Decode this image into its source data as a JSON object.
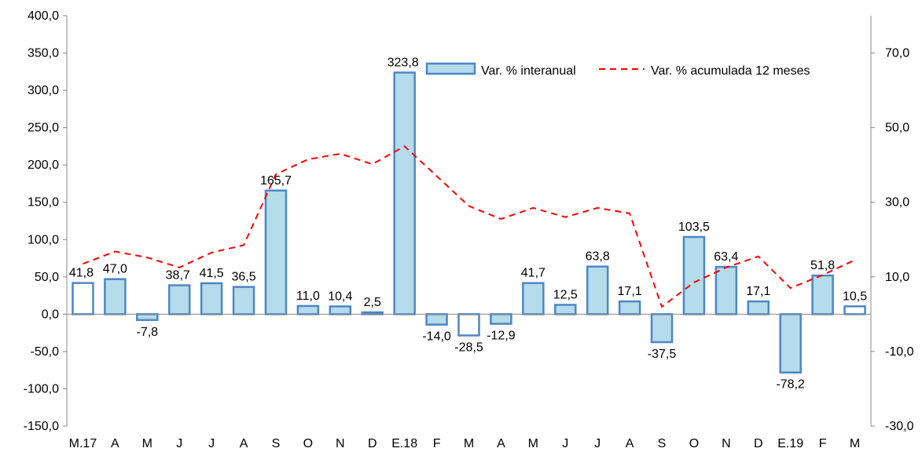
{
  "chart_data": {
    "type": "bar",
    "categories": [
      "M.17",
      "A",
      "M",
      "J",
      "J",
      "A",
      "S",
      "O",
      "N",
      "D",
      "E.18",
      "F",
      "M",
      "A",
      "M",
      "J",
      "J",
      "A",
      "S",
      "O",
      "N",
      "D",
      "E.19",
      "F",
      "M"
    ],
    "series": [
      {
        "name": "Var. % interanual",
        "type": "bar",
        "axis": "left",
        "values": [
          41.8,
          47.0,
          -7.8,
          38.7,
          41.5,
          36.5,
          165.7,
          11.0,
          10.4,
          2.5,
          323.8,
          -14.0,
          -28.5,
          -12.9,
          41.7,
          12.5,
          63.8,
          17.1,
          -37.5,
          103.5,
          63.4,
          17.1,
          -78.2,
          51.8,
          10.5
        ],
        "value_labels": [
          "41,8",
          "47,0",
          "-7,8",
          "38,7",
          "41,5",
          "36,5",
          "165,7",
          "11,0",
          "10,4",
          "2,5",
          "323,8",
          "-14,0",
          "-28,5",
          "-12,9",
          "41,7",
          "12,5",
          "63,8",
          "17,1",
          "-37,5",
          "103,5",
          "63,4",
          "17,1",
          "-78,2",
          "51,8",
          "10,5"
        ],
        "hollow_bars": [
          0,
          12,
          24
        ],
        "fill_color": "#b4dcea",
        "stroke_color": "#4f86c6"
      },
      {
        "name": "Var. % acumulada 12 meses",
        "type": "line",
        "axis": "right",
        "style": "dashed",
        "color": "#ff0000",
        "values": [
          13.5,
          16.8,
          15.2,
          12.5,
          16.5,
          18.5,
          37.5,
          41.5,
          43,
          40.2,
          45,
          37,
          29,
          25.5,
          28.5,
          26,
          28.5,
          27,
          2,
          8.5,
          12.5,
          15.5,
          7,
          10.5,
          14.5
        ]
      }
    ],
    "left_axis": {
      "min": -150,
      "max": 400,
      "step": 50,
      "tick_labels": [
        "-150,0",
        "-100,0",
        "-50,0",
        "0,0",
        "50,0",
        "100,0",
        "150,0",
        "200,0",
        "250,0",
        "300,0",
        "350,0",
        "400,0"
      ]
    },
    "right_axis": {
      "min": -30,
      "max": 80,
      "step": 20,
      "tick_labels": [
        "-30,0",
        "-10,0",
        "10,0",
        "30,0",
        "50,0",
        "70,0"
      ]
    },
    "legend_position": "top-right",
    "grid": false,
    "title": "",
    "xlabel": "",
    "ylabel": ""
  }
}
